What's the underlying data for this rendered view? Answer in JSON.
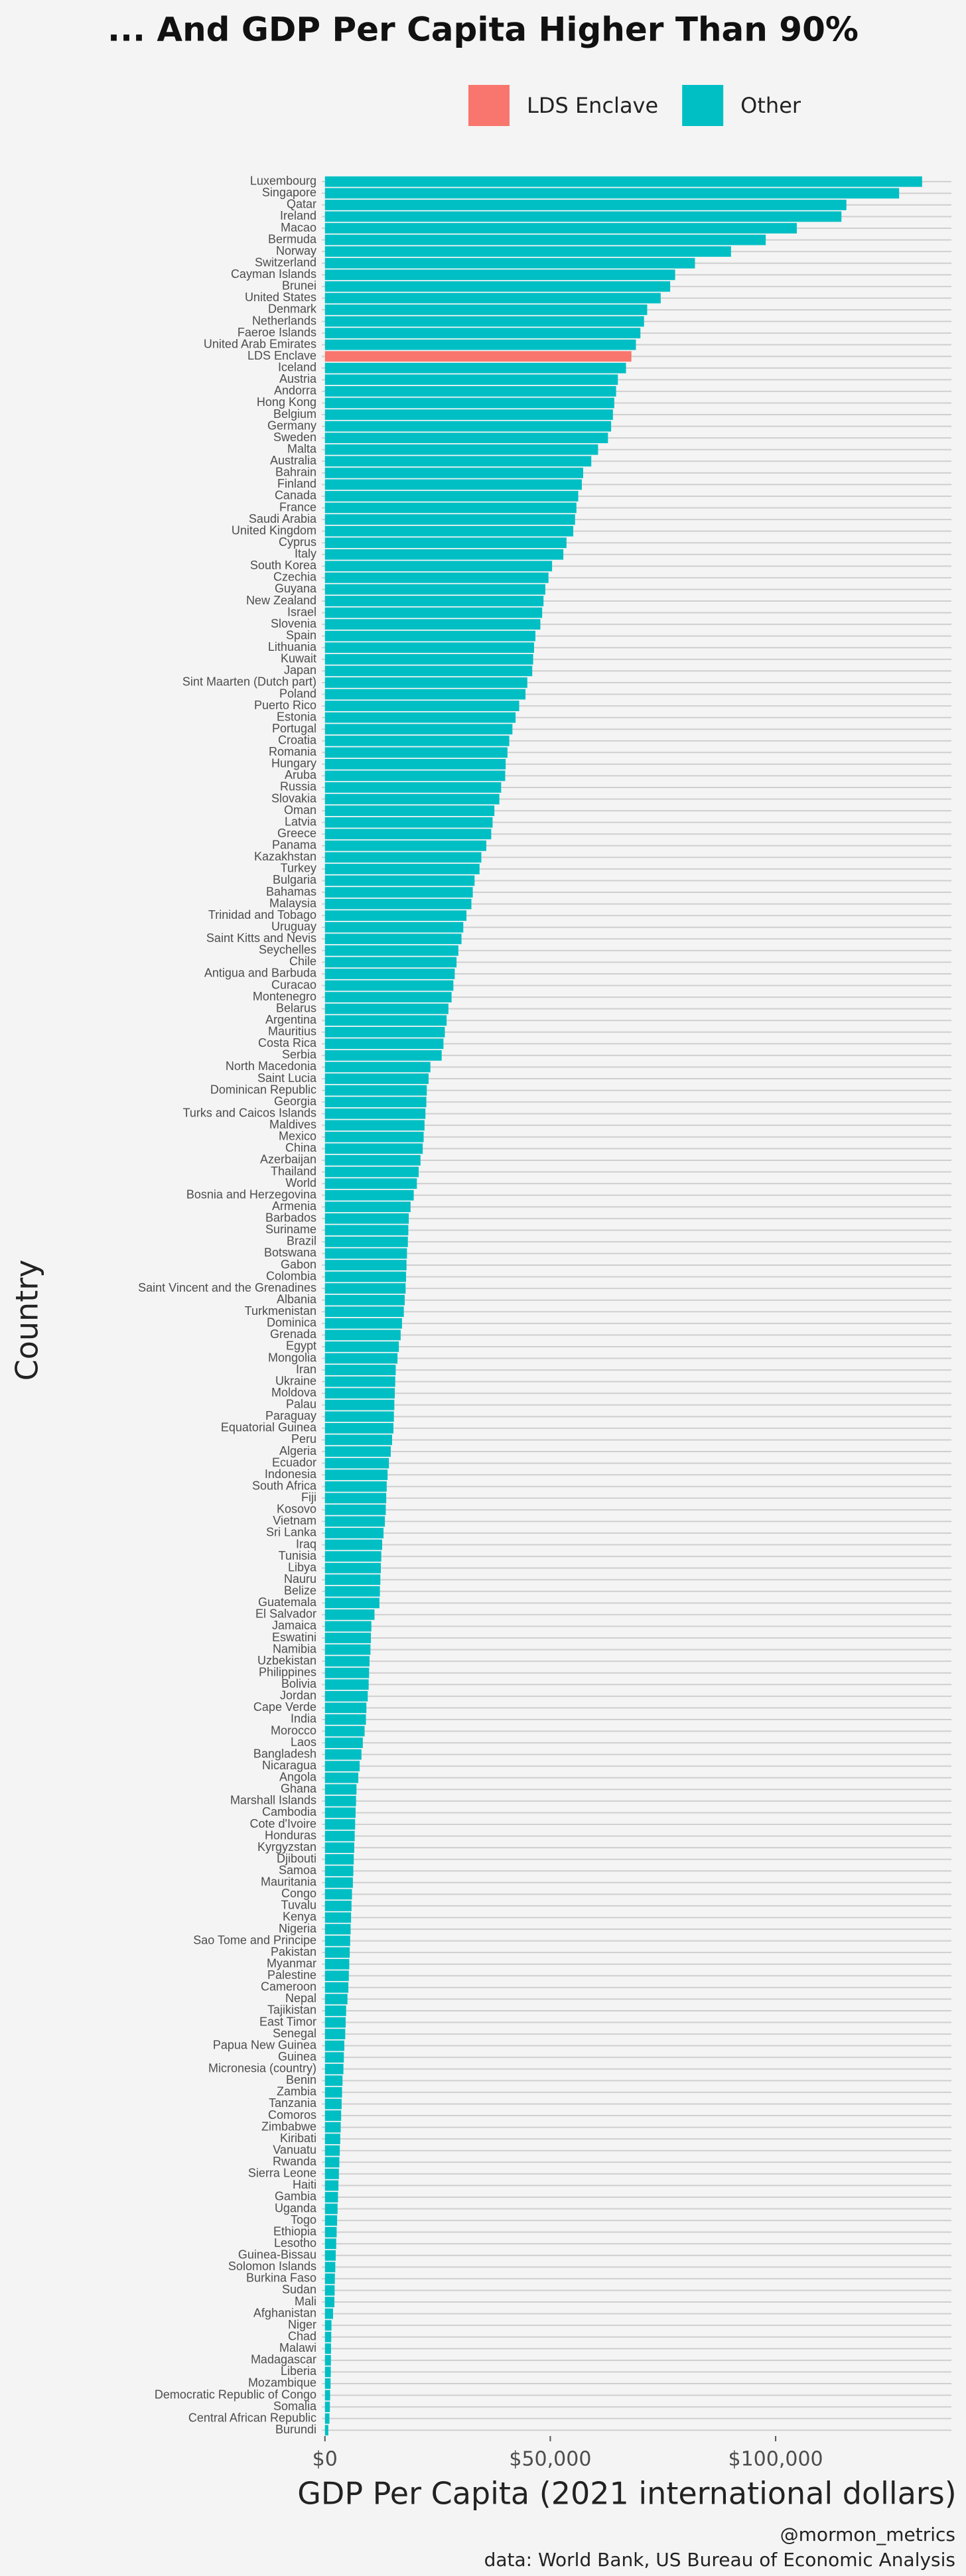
{
  "chart_data": {
    "type": "bar",
    "orientation": "horizontal",
    "title": "... And GDP Per Capita Higher Than 90%",
    "x_label": "GDP Per Capita (2021 international dollars)",
    "y_label": "Country",
    "captions": [
      "@mormon_metrics",
      "data: World Bank, US Bureau of Economic Analysis"
    ],
    "legend": "top",
    "grid": true,
    "xlim": [
      -700,
      139000
    ],
    "xticks": [
      {
        "value": 0,
        "label": "$0"
      },
      {
        "value": 50000,
        "label": "$50,000"
      },
      {
        "value": 100000,
        "label": "$100,000"
      }
    ],
    "categories": [
      "Luxembourg",
      "Singapore",
      "Qatar",
      "Ireland",
      "Macao",
      "Bermuda",
      "Norway",
      "Switzerland",
      "Cayman Islands",
      "Brunei",
      "United States",
      "Denmark",
      "Netherlands",
      "Faeroe Islands",
      "United Arab Emirates",
      "LDS Enclave",
      "Iceland",
      "Austria",
      "Andorra",
      "Hong Kong",
      "Belgium",
      "Germany",
      "Sweden",
      "Malta",
      "Australia",
      "Bahrain",
      "Finland",
      "Canada",
      "France",
      "Saudi Arabia",
      "United Kingdom",
      "Cyprus",
      "Italy",
      "South Korea",
      "Czechia",
      "Guyana",
      "New Zealand",
      "Israel",
      "Slovenia",
      "Spain",
      "Lithuania",
      "Kuwait",
      "Japan",
      "Sint Maarten (Dutch part)",
      "Poland",
      "Puerto Rico",
      "Estonia",
      "Portugal",
      "Croatia",
      "Romania",
      "Hungary",
      "Aruba",
      "Russia",
      "Slovakia",
      "Oman",
      "Latvia",
      "Greece",
      "Panama",
      "Kazakhstan",
      "Turkey",
      "Bulgaria",
      "Bahamas",
      "Malaysia",
      "Trinidad and Tobago",
      "Uruguay",
      "Saint Kitts and Nevis",
      "Seychelles",
      "Chile",
      "Antigua and Barbuda",
      "Curacao",
      "Montenegro",
      "Belarus",
      "Argentina",
      "Mauritius",
      "Costa Rica",
      "Serbia",
      "North Macedonia",
      "Saint Lucia",
      "Dominican Republic",
      "Georgia",
      "Turks and Caicos Islands",
      "Maldives",
      "Mexico",
      "China",
      "Azerbaijan",
      "Thailand",
      "World",
      "Bosnia and Herzegovina",
      "Armenia",
      "Barbados",
      "Suriname",
      "Brazil",
      "Botswana",
      "Gabon",
      "Colombia",
      "Saint Vincent and the Grenadines",
      "Albania",
      "Turkmenistan",
      "Dominica",
      "Grenada",
      "Egypt",
      "Mongolia",
      "Iran",
      "Ukraine",
      "Moldova",
      "Palau",
      "Paraguay",
      "Equatorial Guinea",
      "Peru",
      "Algeria",
      "Ecuador",
      "Indonesia",
      "South Africa",
      "Fiji",
      "Kosovo",
      "Vietnam",
      "Sri Lanka",
      "Iraq",
      "Tunisia",
      "Libya",
      "Nauru",
      "Belize",
      "Guatemala",
      "El Salvador",
      "Jamaica",
      "Eswatini",
      "Namibia",
      "Uzbekistan",
      "Philippines",
      "Bolivia",
      "Jordan",
      "Cape Verde",
      "India",
      "Morocco",
      "Laos",
      "Bangladesh",
      "Nicaragua",
      "Angola",
      "Ghana",
      "Marshall Islands",
      "Cambodia",
      "Cote d'Ivoire",
      "Honduras",
      "Kyrgyzstan",
      "Djibouti",
      "Samoa",
      "Mauritania",
      "Congo",
      "Tuvalu",
      "Kenya",
      "Nigeria",
      "Sao Tome and Principe",
      "Pakistan",
      "Myanmar",
      "Palestine",
      "Cameroon",
      "Nepal",
      "Tajikistan",
      "East Timor",
      "Senegal",
      "Papua New Guinea",
      "Guinea",
      "Micronesia (country)",
      "Benin",
      "Zambia",
      "Tanzania",
      "Comoros",
      "Zimbabwe",
      "Kiribati",
      "Vanuatu",
      "Rwanda",
      "Sierra Leone",
      "Haiti",
      "Gambia",
      "Uganda",
      "Togo",
      "Ethiopia",
      "Lesotho",
      "Guinea-Bissau",
      "Solomon Islands",
      "Burkina Faso",
      "Sudan",
      "Mali",
      "Afghanistan",
      "Niger",
      "Chad",
      "Malawi",
      "Madagascar",
      "Liberia",
      "Mozambique",
      "Democratic Republic of Congo",
      "Somalia",
      "Central African Republic",
      "Burundi"
    ],
    "series": [
      {
        "name": "LDS Enclave",
        "color": "#f8766d",
        "values": [
          null,
          null,
          null,
          null,
          null,
          null,
          null,
          null,
          null,
          null,
          null,
          null,
          null,
          null,
          null,
          68000,
          null,
          null,
          null,
          null,
          null,
          null,
          null,
          null,
          null,
          null,
          null,
          null,
          null,
          null,
          null,
          null,
          null,
          null,
          null,
          null,
          null,
          null,
          null,
          null,
          null,
          null,
          null,
          null,
          null,
          null,
          null,
          null,
          null,
          null,
          null,
          null,
          null,
          null,
          null,
          null,
          null,
          null,
          null,
          null,
          null,
          null,
          null,
          null,
          null,
          null,
          null,
          null,
          null,
          null,
          null,
          null,
          null,
          null,
          null,
          null,
          null,
          null,
          null,
          null,
          null,
          null,
          null,
          null,
          null,
          null,
          null,
          null,
          null,
          null,
          null,
          null,
          null,
          null,
          null,
          null,
          null,
          null,
          null,
          null,
          null,
          null,
          null,
          null,
          null,
          null,
          null,
          null,
          null,
          null,
          null,
          null,
          null,
          null,
          null,
          null,
          null,
          null,
          null,
          null,
          null,
          null,
          null,
          null,
          null,
          null,
          null,
          null,
          null,
          null,
          null,
          null,
          null,
          null,
          null,
          null,
          null,
          null,
          null,
          null,
          null,
          null,
          null,
          null,
          null,
          null,
          null,
          null,
          null,
          null,
          null,
          null,
          null,
          null,
          null,
          null,
          null,
          null,
          null,
          null,
          null,
          null,
          null,
          null,
          null,
          null,
          null,
          null,
          null,
          null,
          null,
          null,
          null,
          null,
          null,
          null,
          null,
          null,
          null,
          null,
          null,
          null,
          null,
          null,
          null,
          null,
          null,
          null,
          null,
          null,
          null,
          null,
          null,
          null
        ]
      },
      {
        "name": "Other",
        "color": "#00bfc4",
        "values": [
          132500,
          127400,
          115700,
          114600,
          104700,
          97800,
          90100,
          82100,
          77700,
          76600,
          74500,
          71500,
          70800,
          70000,
          69000,
          null,
          66800,
          65000,
          64600,
          64200,
          63900,
          63500,
          62800,
          60600,
          59100,
          57300,
          57000,
          56200,
          55800,
          55500,
          55100,
          53600,
          52900,
          50400,
          49600,
          48900,
          48500,
          48200,
          47800,
          46700,
          46400,
          46200,
          46000,
          44900,
          44500,
          43100,
          42300,
          41600,
          40900,
          40500,
          40100,
          40000,
          39100,
          38700,
          37600,
          37200,
          36900,
          35800,
          34700,
          34300,
          33200,
          32800,
          32500,
          31400,
          30700,
          30300,
          29600,
          29200,
          28800,
          28500,
          28100,
          27400,
          27000,
          26600,
          26300,
          25900,
          23400,
          23000,
          22600,
          22500,
          22300,
          22100,
          21900,
          21700,
          21200,
          20800,
          20400,
          19700,
          19000,
          18600,
          18500,
          18400,
          18200,
          18100,
          18000,
          17900,
          17700,
          17500,
          17100,
          16800,
          16400,
          16100,
          15700,
          15600,
          15500,
          15400,
          15300,
          15200,
          14900,
          14600,
          14200,
          13900,
          13700,
          13600,
          13500,
          13300,
          13000,
          12700,
          12500,
          12400,
          12300,
          12200,
          12100,
          11000,
          10300,
          10200,
          10100,
          9900,
          9800,
          9700,
          9500,
          9200,
          9100,
          8800,
          8400,
          8100,
          7700,
          7400,
          7000,
          6900,
          6800,
          6700,
          6600,
          6500,
          6400,
          6300,
          6200,
          6000,
          5900,
          5800,
          5700,
          5600,
          5500,
          5400,
          5300,
          5200,
          5000,
          4700,
          4600,
          4500,
          4300,
          4200,
          4100,
          3900,
          3800,
          3700,
          3600,
          3500,
          3400,
          3300,
          3200,
          3100,
          3000,
          2900,
          2800,
          2700,
          2600,
          2500,
          2400,
          2300,
          2200,
          2150,
          2100,
          1800,
          1450,
          1400,
          1350,
          1330,
          1300,
          1250,
          1150,
          1100,
          1000,
          750
        ]
      }
    ]
  }
}
